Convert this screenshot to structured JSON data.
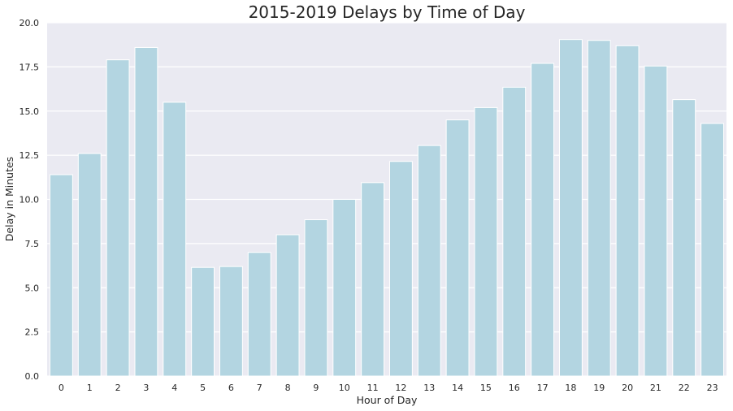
{
  "chart_data": {
    "type": "bar",
    "title": "2015-2019 Delays by Time of Day",
    "xlabel": "Hour of Day",
    "ylabel": "Delay in Minutes",
    "categories": [
      "0",
      "1",
      "2",
      "3",
      "4",
      "5",
      "6",
      "7",
      "8",
      "9",
      "10",
      "11",
      "12",
      "13",
      "14",
      "15",
      "16",
      "17",
      "18",
      "19",
      "20",
      "21",
      "22",
      "23"
    ],
    "values": [
      11.4,
      12.6,
      17.9,
      18.6,
      15.5,
      6.15,
      6.2,
      7.0,
      8.0,
      8.85,
      10.0,
      10.95,
      12.15,
      13.05,
      14.5,
      15.2,
      16.35,
      17.7,
      19.05,
      19.0,
      18.7,
      17.55,
      15.65,
      14.3
    ],
    "ylim": [
      0,
      20
    ],
    "yticks": [
      "0.0",
      "2.5",
      "5.0",
      "7.5",
      "10.0",
      "12.5",
      "15.0",
      "17.5",
      "20.0"
    ],
    "grid": true,
    "colors": {
      "bar": "#b3d5e1",
      "background": "#eaeaf2",
      "grid": "#ffffff"
    }
  }
}
